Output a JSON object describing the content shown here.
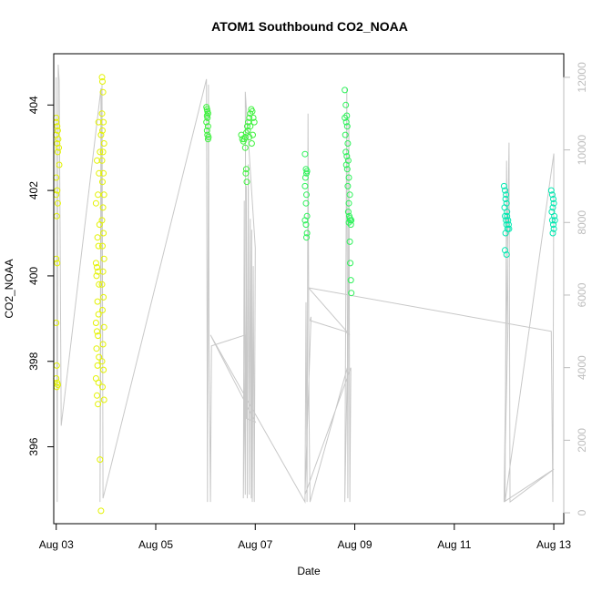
{
  "chart_data": {
    "type": "scatter",
    "title": "ATOM1 Southbound CO2_NOAA",
    "xlabel": "Date",
    "ylabel": "CO2_NOAA",
    "x_ticks": [
      "Aug 03",
      "Aug 05",
      "Aug 07",
      "Aug 09",
      "Aug 11",
      "Aug 13"
    ],
    "x_tick_days": [
      3,
      5,
      7,
      9,
      11,
      13
    ],
    "xlim": [
      2.95,
      13.2
    ],
    "ylim": [
      394.2,
      405.2
    ],
    "y_ticks": [
      396,
      398,
      400,
      402,
      404
    ],
    "y2_ticks": [
      0,
      2000,
      4000,
      6000,
      8000,
      10000,
      12000
    ],
    "y2lim": [
      -300,
      12650
    ],
    "grid": false,
    "colors": {
      "altitude_line": "#c8c8c8",
      "right_axis": "#bdbdbd",
      "points_early": "#e3f200",
      "points_mid": "#3ef23e",
      "points_late": "#00e8b0"
    },
    "series": [
      {
        "color": "#e3f200",
        "points": [
          [
            3.0,
            403.7
          ],
          [
            3.0,
            403.6
          ],
          [
            3.02,
            403.5
          ],
          [
            3.03,
            403.4
          ],
          [
            3.0,
            403.3
          ],
          [
            3.04,
            403.2
          ],
          [
            3.02,
            403.1
          ],
          [
            3.05,
            403.0
          ],
          [
            3.03,
            402.9
          ],
          [
            3.06,
            402.6
          ],
          [
            3.0,
            402.3
          ],
          [
            3.02,
            402.0
          ],
          [
            3.0,
            401.9
          ],
          [
            3.03,
            401.7
          ],
          [
            3.01,
            401.4
          ],
          [
            3.0,
            400.4
          ],
          [
            3.02,
            400.3
          ],
          [
            3.0,
            398.9
          ],
          [
            3.01,
            397.9
          ],
          [
            3.0,
            397.6
          ],
          [
            3.02,
            397.5
          ],
          [
            3.01,
            397.4
          ],
          [
            3.03,
            397.45
          ],
          [
            3.85,
            403.6
          ],
          [
            3.9,
            403.3
          ],
          [
            3.88,
            402.9
          ],
          [
            3.82,
            402.7
          ],
          [
            3.86,
            402.4
          ],
          [
            3.84,
            401.9
          ],
          [
            3.8,
            401.7
          ],
          [
            3.87,
            401.2
          ],
          [
            3.83,
            400.9
          ],
          [
            3.85,
            400.7
          ],
          [
            3.8,
            400.3
          ],
          [
            3.82,
            400.2
          ],
          [
            3.84,
            400.1
          ],
          [
            3.81,
            400.0
          ],
          [
            3.86,
            399.8
          ],
          [
            3.83,
            399.4
          ],
          [
            3.85,
            399.1
          ],
          [
            3.8,
            398.9
          ],
          [
            3.82,
            398.7
          ],
          [
            3.84,
            398.6
          ],
          [
            3.81,
            398.3
          ],
          [
            3.86,
            398.1
          ],
          [
            3.83,
            397.9
          ],
          [
            3.8,
            397.6
          ],
          [
            3.85,
            397.5
          ],
          [
            3.82,
            397.2
          ],
          [
            3.84,
            397.0
          ],
          [
            3.88,
            395.7
          ],
          [
            3.9,
            394.5
          ],
          [
            3.92,
            404.65
          ],
          [
            3.93,
            404.55
          ],
          [
            3.94,
            404.3
          ],
          [
            3.92,
            403.8
          ],
          [
            3.95,
            403.6
          ],
          [
            3.93,
            403.4
          ],
          [
            3.96,
            403.1
          ],
          [
            3.94,
            402.9
          ],
          [
            3.92,
            402.7
          ],
          [
            3.95,
            402.4
          ],
          [
            3.93,
            402.2
          ],
          [
            3.96,
            401.9
          ],
          [
            3.94,
            401.6
          ],
          [
            3.92,
            401.3
          ],
          [
            3.95,
            401.0
          ],
          [
            3.93,
            400.7
          ],
          [
            3.96,
            400.4
          ],
          [
            3.94,
            400.1
          ],
          [
            3.92,
            399.8
          ],
          [
            3.95,
            399.5
          ],
          [
            3.93,
            399.2
          ],
          [
            3.96,
            398.8
          ],
          [
            3.94,
            398.4
          ],
          [
            3.92,
            398.0
          ],
          [
            3.95,
            397.8
          ],
          [
            3.93,
            397.4
          ],
          [
            3.96,
            397.1
          ]
        ]
      },
      {
        "color": "#3ef23e",
        "points": [
          [
            6.02,
            403.95
          ],
          [
            6.03,
            403.9
          ],
          [
            6.04,
            403.85
          ],
          [
            6.05,
            403.8
          ],
          [
            6.03,
            403.75
          ],
          [
            6.04,
            403.7
          ],
          [
            6.02,
            403.6
          ],
          [
            6.05,
            403.5
          ],
          [
            6.03,
            403.4
          ],
          [
            6.04,
            403.3
          ],
          [
            6.06,
            403.25
          ],
          [
            6.05,
            403.2
          ],
          [
            6.72,
            403.3
          ],
          [
            6.74,
            403.2
          ],
          [
            6.76,
            403.15
          ],
          [
            6.78,
            403.2
          ],
          [
            6.8,
            403.25
          ],
          [
            6.82,
            403.35
          ],
          [
            6.84,
            403.5
          ],
          [
            6.86,
            403.6
          ],
          [
            6.88,
            403.7
          ],
          [
            6.9,
            403.8
          ],
          [
            6.92,
            403.9
          ],
          [
            6.94,
            403.85
          ],
          [
            6.96,
            403.7
          ],
          [
            6.98,
            403.6
          ],
          [
            6.9,
            403.5
          ],
          [
            6.85,
            403.4
          ],
          [
            6.95,
            403.3
          ],
          [
            6.88,
            403.25
          ],
          [
            6.93,
            403.1
          ],
          [
            6.8,
            403.0
          ],
          [
            6.82,
            402.5
          ],
          [
            6.81,
            402.4
          ],
          [
            6.83,
            402.2
          ]
        ]
      },
      {
        "color": "#2ef25a",
        "points": [
          [
            8.0,
            402.85
          ],
          [
            8.02,
            402.5
          ],
          [
            8.04,
            402.45
          ],
          [
            8.03,
            402.4
          ],
          [
            8.01,
            402.3
          ],
          [
            8.0,
            402.1
          ],
          [
            8.03,
            401.9
          ],
          [
            8.02,
            401.7
          ],
          [
            8.04,
            401.4
          ],
          [
            8.0,
            401.3
          ],
          [
            8.02,
            401.2
          ],
          [
            8.04,
            401.0
          ],
          [
            8.03,
            400.9
          ],
          [
            8.8,
            404.35
          ],
          [
            8.82,
            404.0
          ],
          [
            8.84,
            403.75
          ],
          [
            8.8,
            403.7
          ],
          [
            8.83,
            403.6
          ],
          [
            8.85,
            403.5
          ],
          [
            8.81,
            403.3
          ],
          [
            8.86,
            403.1
          ],
          [
            8.82,
            402.9
          ],
          [
            8.84,
            402.8
          ],
          [
            8.87,
            402.7
          ],
          [
            8.83,
            402.6
          ],
          [
            8.85,
            402.5
          ],
          [
            8.88,
            402.3
          ],
          [
            8.86,
            402.1
          ],
          [
            8.9,
            401.9
          ],
          [
            8.88,
            401.7
          ],
          [
            8.87,
            401.5
          ],
          [
            8.89,
            401.4
          ],
          [
            8.9,
            401.35
          ],
          [
            8.91,
            401.3
          ],
          [
            8.88,
            401.25
          ],
          [
            8.92,
            401.2
          ],
          [
            8.93,
            401.3
          ],
          [
            8.9,
            400.8
          ],
          [
            8.91,
            400.3
          ],
          [
            8.92,
            399.9
          ],
          [
            8.93,
            399.6
          ]
        ]
      },
      {
        "color": "#00e8b0",
        "points": [
          [
            12.0,
            402.1
          ],
          [
            12.02,
            402.0
          ],
          [
            12.04,
            401.9
          ],
          [
            12.03,
            401.8
          ],
          [
            12.05,
            401.7
          ],
          [
            12.01,
            401.6
          ],
          [
            12.06,
            401.5
          ],
          [
            12.02,
            401.4
          ],
          [
            12.04,
            401.3
          ],
          [
            12.05,
            401.2
          ],
          [
            12.07,
            401.1
          ],
          [
            12.03,
            401.0
          ],
          [
            12.08,
            401.3
          ],
          [
            12.06,
            401.4
          ],
          [
            12.09,
            401.2
          ],
          [
            12.1,
            401.1
          ],
          [
            12.02,
            400.6
          ],
          [
            12.05,
            400.5
          ],
          [
            12.95,
            402.0
          ],
          [
            12.97,
            401.9
          ],
          [
            12.99,
            401.8
          ],
          [
            13.0,
            401.7
          ],
          [
            12.98,
            401.6
          ],
          [
            12.96,
            401.5
          ],
          [
            13.01,
            401.4
          ],
          [
            12.97,
            401.3
          ],
          [
            12.99,
            401.2
          ],
          [
            13.0,
            401.1
          ],
          [
            12.98,
            401.0
          ],
          [
            13.02,
            401.3
          ]
        ]
      }
    ],
    "altitude_line": [
      [
        3.0,
        12000
      ],
      [
        3.02,
        300
      ],
      [
        3.04,
        12350
      ],
      [
        3.06,
        11900
      ],
      [
        3.1,
        2400
      ],
      [
        3.9,
        11700
      ],
      [
        3.88,
        300
      ],
      [
        3.92,
        11800
      ],
      [
        3.94,
        400
      ],
      [
        6.02,
        11950
      ],
      [
        6.04,
        300
      ],
      [
        6.06,
        11800
      ],
      [
        6.07,
        4800
      ],
      [
        6.1,
        300
      ],
      [
        6.12,
        4600
      ],
      [
        6.8,
        4900
      ],
      [
        6.76,
        400
      ],
      [
        6.78,
        8600
      ],
      [
        6.8,
        500
      ],
      [
        6.82,
        9000
      ],
      [
        6.84,
        400
      ],
      [
        6.86,
        9600
      ],
      [
        6.88,
        500
      ],
      [
        6.9,
        8100
      ],
      [
        6.92,
        400
      ],
      [
        6.93,
        7800
      ],
      [
        6.94,
        300
      ],
      [
        6.96,
        6800
      ],
      [
        6.98,
        300
      ],
      [
        7.0,
        7300
      ],
      [
        6.8,
        11600
      ],
      [
        6.82,
        2600
      ],
      [
        7.0,
        2500
      ],
      [
        6.1,
        4900
      ],
      [
        8.0,
        300
      ],
      [
        8.02,
        5800
      ],
      [
        8.04,
        300
      ],
      [
        8.06,
        11000
      ],
      [
        8.08,
        2800
      ],
      [
        8.1,
        300
      ],
      [
        8.85,
        4000
      ],
      [
        8.8,
        300
      ],
      [
        8.84,
        11700
      ],
      [
        8.86,
        400
      ],
      [
        8.88,
        10900
      ],
      [
        8.9,
        300
      ],
      [
        8.92,
        4000
      ],
      [
        8.0,
        500
      ],
      [
        8.12,
        5400
      ],
      [
        8.1,
        5300
      ],
      [
        8.8,
        5000
      ],
      [
        8.9,
        4900
      ],
      [
        8.07,
        6200
      ],
      [
        12.95,
        5000
      ],
      [
        12.98,
        300
      ],
      [
        13.0,
        9900
      ],
      [
        12.02,
        300
      ],
      [
        12.05,
        9700
      ],
      [
        12.08,
        5200
      ],
      [
        12.0,
        300
      ],
      [
        12.1,
        10200
      ],
      [
        12.12,
        300
      ],
      [
        13.0,
        1200
      ],
      [
        12.0,
        300
      ]
    ]
  }
}
